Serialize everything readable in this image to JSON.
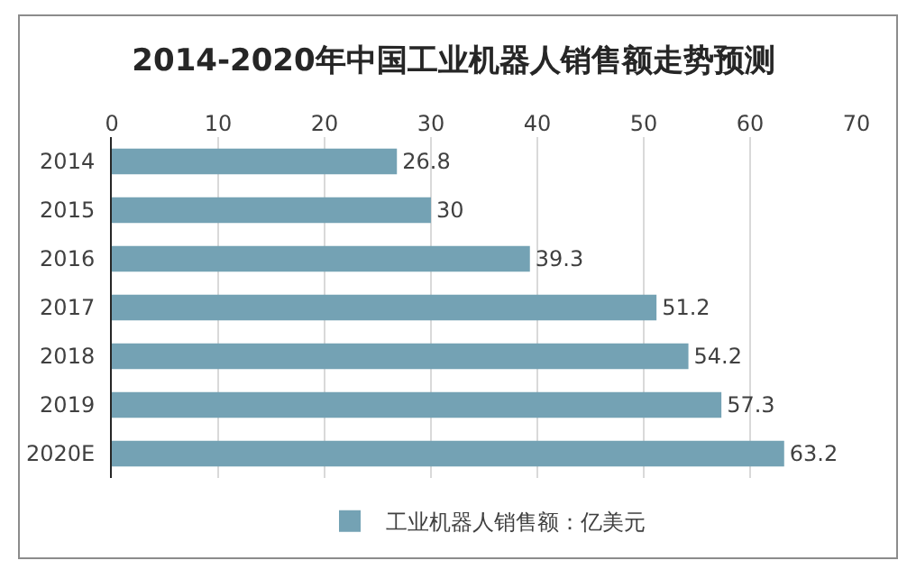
{
  "chart_data": {
    "type": "bar",
    "title": "2014-2020年中国工业机器人销售额走势预测",
    "orientation": "horizontal",
    "categories": [
      "2014",
      "2015",
      "2016",
      "2017",
      "2018",
      "2019",
      "2020E"
    ],
    "series": [
      {
        "name": "工业机器人销售额：亿美元",
        "color": "#74a2b4",
        "values": [
          26.8,
          30,
          39.3,
          51.2,
          54.2,
          57.3,
          63.2
        ]
      }
    ],
    "xlim": [
      0,
      70
    ],
    "xticks": [
      0,
      10,
      20,
      30,
      40,
      50,
      60,
      70
    ],
    "grid": "x",
    "legend": "bottom",
    "data_labels": true
  }
}
